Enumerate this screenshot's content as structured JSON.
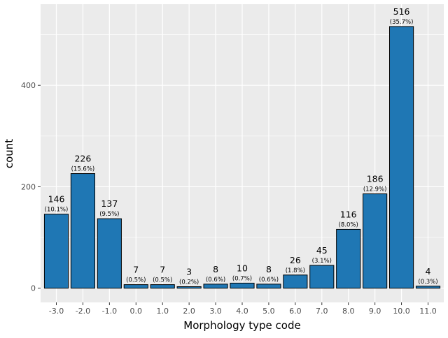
{
  "chart_data": {
    "type": "bar",
    "xlabel": "Morphology type code",
    "ylabel": "count",
    "categories": [
      "-3.0",
      "-2.0",
      "-1.0",
      "0.0",
      "1.0",
      "2.0",
      "3.0",
      "4.0",
      "5.0",
      "6.0",
      "7.0",
      "8.0",
      "9.0",
      "10.0",
      "11.0"
    ],
    "values": [
      146,
      226,
      137,
      7,
      7,
      3,
      8,
      10,
      8,
      26,
      45,
      116,
      186,
      516,
      4
    ],
    "percent_labels": [
      "(10.1%)",
      "(15.6%)",
      "(9.5%)",
      "(0.5%)",
      "(0.5%)",
      "(0.2%)",
      "(0.6%)",
      "(0.7%)",
      "(0.6%)",
      "(1.8%)",
      "(3.1%)",
      "(8.0%)",
      "(12.9%)",
      "(35.7%)",
      "(0.3%)"
    ],
    "y_ticks": [
      0,
      200,
      400
    ],
    "ylim": [
      -28,
      560
    ],
    "grid": true,
    "bar_color": "#1f77b4",
    "bar_edge_color": "#000000",
    "panel_background": "#ebebeb",
    "grid_color": "#ffffff"
  }
}
